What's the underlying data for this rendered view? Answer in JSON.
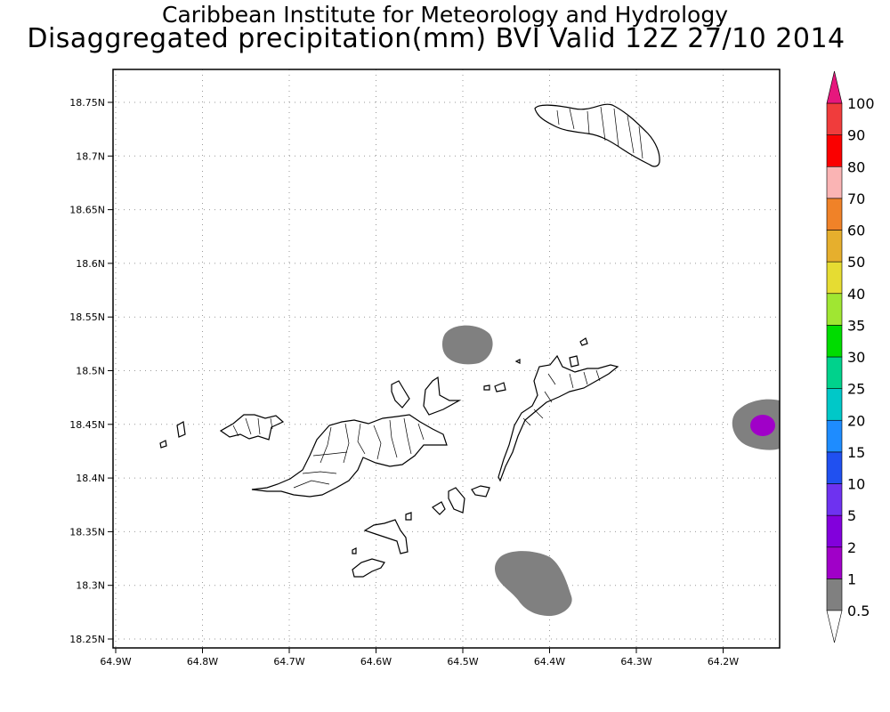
{
  "title": "Caribbean Institute for Meteorology and Hydrology",
  "subtitle": "Disaggregated precipitation(mm) BVI Valid 12Z 27/10 2014",
  "axes": {
    "lon_ticks": [
      "64.9W",
      "64.8W",
      "64.7W",
      "64.6W",
      "64.5W",
      "64.4W",
      "64.3W",
      "64.2W"
    ],
    "lat_ticks": [
      "18.25N",
      "18.3N",
      "18.35N",
      "18.4N",
      "18.45N",
      "18.5N",
      "18.55N",
      "18.6N",
      "18.65N",
      "18.7N",
      "18.75N"
    ],
    "grid": true
  },
  "colorbar": {
    "labels": [
      "0.5",
      "1",
      "2",
      "5",
      "10",
      "15",
      "20",
      "25",
      "30",
      "35",
      "40",
      "50",
      "60",
      "70",
      "80",
      "90",
      "100"
    ],
    "colors": [
      "#808080",
      "#a000c8",
      "#8200dc",
      "#6e32f0",
      "#2050f0",
      "#1e8cff",
      "#00c8c8",
      "#00d28c",
      "#00dc00",
      "#a0e632",
      "#e6dc32",
      "#e6af2d",
      "#f08228",
      "#fab4b4",
      "#fa0000",
      "#f03c3c"
    ],
    "top_color": "#e6177d",
    "bottom_color": "#ffffff"
  },
  "precip_regions": [
    {
      "name": "north-of-tortola-cell",
      "color": "#808080"
    },
    {
      "name": "south-cell",
      "color": "#808080"
    },
    {
      "name": "east-edge-cell",
      "color": "#808080"
    },
    {
      "name": "east-edge-core",
      "color": "#a000c8"
    }
  ],
  "islands": [
    "anegada",
    "west-islets",
    "st-john-area",
    "tortola",
    "jost-van-dyke",
    "virgin-gorda",
    "peter-island",
    "norman-island",
    "cooper-island",
    "ginger-island"
  ]
}
